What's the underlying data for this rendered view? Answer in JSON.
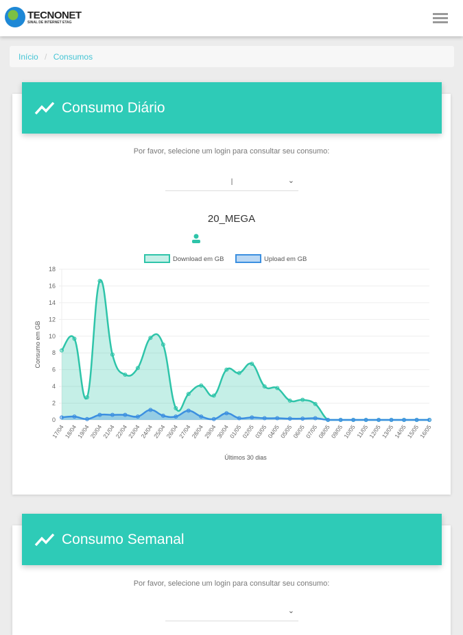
{
  "header": {
    "brand": "TECNONET",
    "tagline": "SINAL DE INTERNET ETAG",
    "menu_icon": "hamburger-icon"
  },
  "breadcrumb": {
    "home": "Início",
    "separator": "/",
    "current": "Consumos"
  },
  "daily": {
    "title": "Consumo Diário",
    "prompt": "Por favor, selecione um login para consultar seu consumo:",
    "selected": "|",
    "plan": "20_MEGA"
  },
  "weekly": {
    "title": "Consumo Semanal",
    "prompt": "Por favor, selecione um login para consultar seu consumo:"
  },
  "chart_data": {
    "type": "line",
    "xlabel": "Últimos 30 dias",
    "ylabel": "Consumo em GB",
    "ylim": [
      0,
      18
    ],
    "yticks": [
      0,
      2,
      4,
      6,
      8,
      10,
      12,
      14,
      16,
      18
    ],
    "grid": true,
    "legend": "top",
    "categories": [
      "17/04",
      "18/04",
      "19/04",
      "20/04",
      "21/04",
      "22/04",
      "23/04",
      "24/04",
      "25/04",
      "26/04",
      "27/04",
      "28/04",
      "29/04",
      "30/04",
      "01/05",
      "02/05",
      "03/05",
      "04/05",
      "05/05",
      "06/05",
      "07/05",
      "08/05",
      "09/05",
      "10/05",
      "11/05",
      "12/05",
      "13/05",
      "14/05",
      "15/05",
      "16/05"
    ],
    "series": [
      {
        "name": "Download em GB",
        "color": "#2ec4a9",
        "values": [
          8.3,
          9.7,
          2.7,
          16.6,
          7.8,
          5.4,
          6.2,
          9.8,
          9.0,
          1.4,
          3.1,
          4.1,
          2.9,
          6.0,
          5.6,
          6.7,
          4.0,
          3.8,
          2.3,
          2.4,
          1.9,
          0,
          0,
          0,
          0,
          0,
          0,
          0,
          0,
          0
        ]
      },
      {
        "name": "Upload em GB",
        "color": "#3b8fe0",
        "values": [
          0.3,
          0.4,
          0.1,
          0.6,
          0.6,
          0.6,
          0.4,
          1.2,
          0.5,
          0.4,
          1.1,
          0.4,
          0.1,
          0.8,
          0.2,
          0.3,
          0.2,
          0.2,
          0.15,
          0.15,
          0.2,
          0,
          0,
          0,
          0,
          0,
          0,
          0,
          0,
          0
        ]
      }
    ]
  }
}
